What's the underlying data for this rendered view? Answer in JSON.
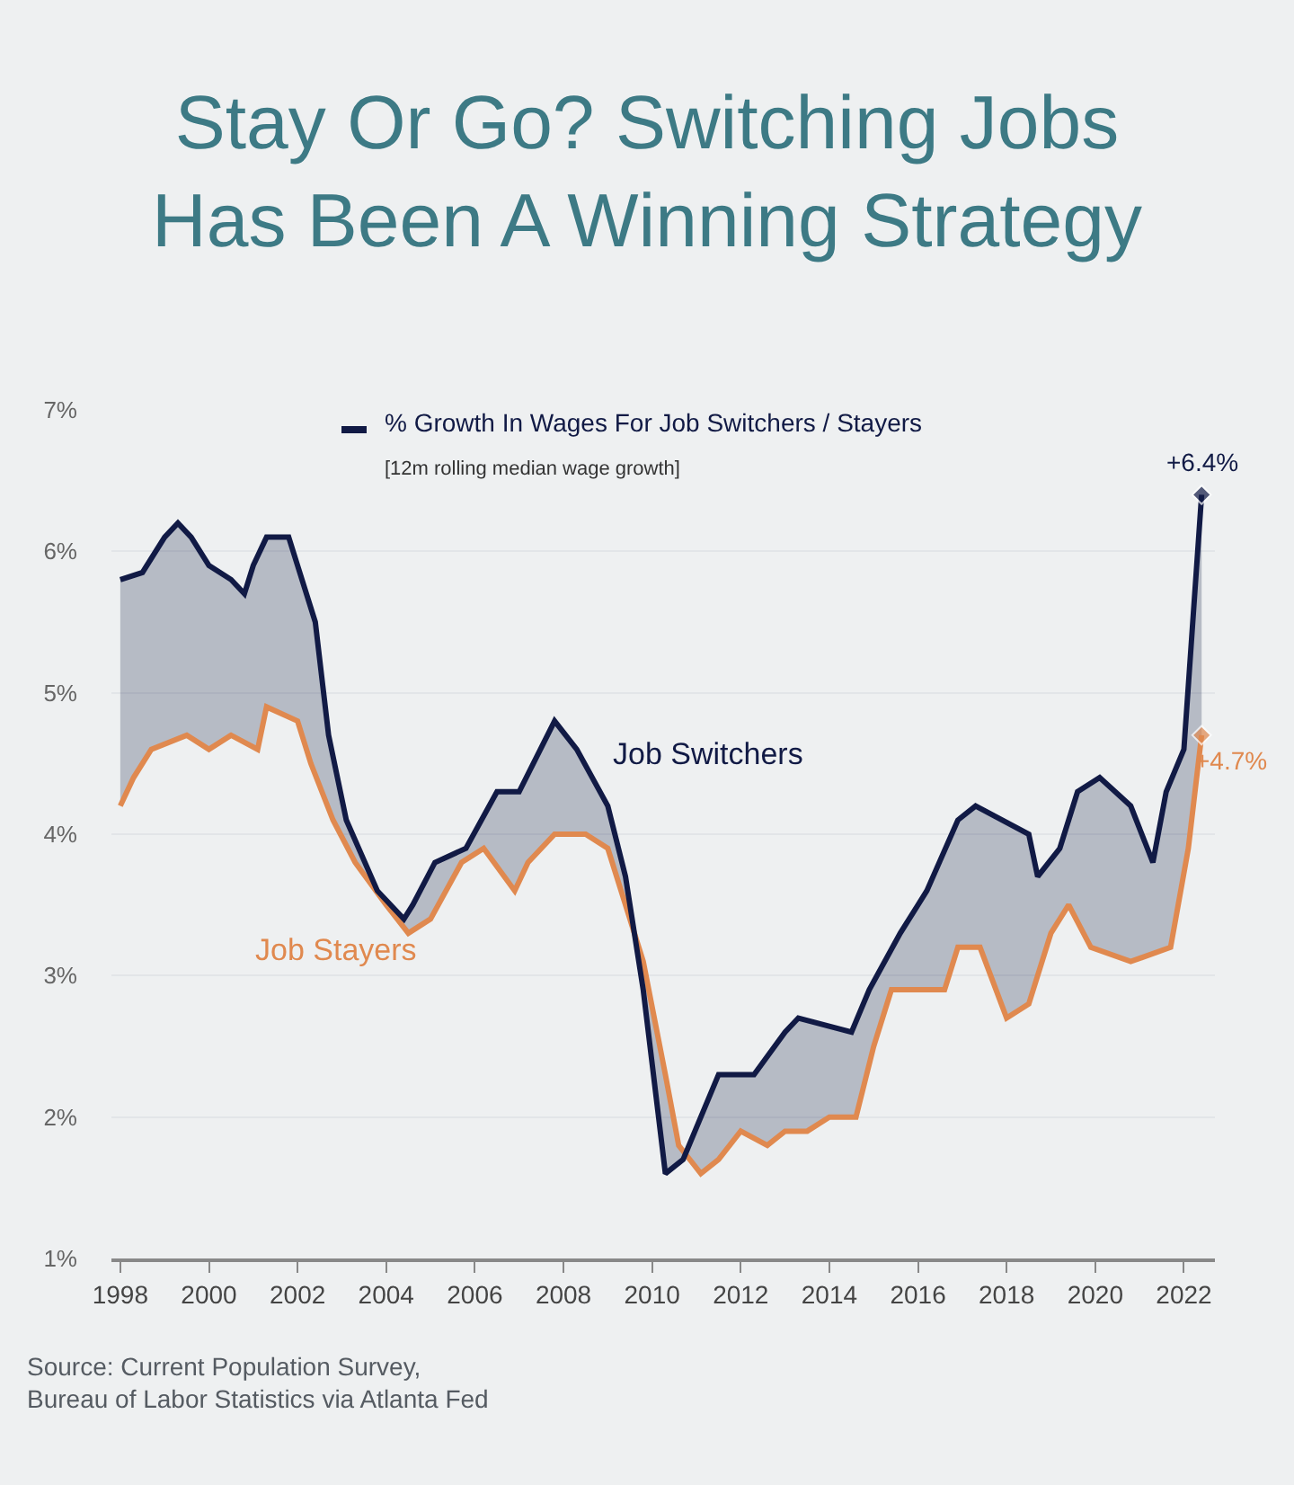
{
  "chart_data": {
    "type": "line",
    "title": "Stay Or Go? Switching Jobs\nHas Been A Winning Strategy",
    "legend_title": "% Growth In Wages For Job Switchers / Stayers",
    "subtitle": "[12m rolling median wage growth]",
    "series": [
      {
        "name": "Job Stayers",
        "color": "#e0894f",
        "x": [
          1998.0,
          1998.3,
          1998.7,
          1999.5,
          2000.0,
          2000.5,
          2001.1,
          2001.3,
          2002.0,
          2002.3,
          2002.8,
          2003.3,
          2004.0,
          2004.5,
          2005.0,
          2005.7,
          2006.2,
          2006.9,
          2007.2,
          2007.8,
          2008.5,
          2009.0,
          2009.3,
          2009.8,
          2010.3,
          2010.6,
          2011.1,
          2011.5,
          2012.0,
          2012.6,
          2013.0,
          2013.5,
          2014.0,
          2014.6,
          2015.0,
          2015.4,
          2016.0,
          2016.6,
          2016.9,
          2017.4,
          2018.0,
          2018.5,
          2019.0,
          2019.4,
          2019.9,
          2020.8,
          2021.7,
          2022.1,
          2022.4
        ],
        "values": [
          4.2,
          4.4,
          4.6,
          4.7,
          4.6,
          4.7,
          4.6,
          4.9,
          4.8,
          4.5,
          4.1,
          3.8,
          3.5,
          3.3,
          3.4,
          3.8,
          3.9,
          3.6,
          3.8,
          4.0,
          4.0,
          3.9,
          3.6,
          3.1,
          2.3,
          1.8,
          1.6,
          1.7,
          1.9,
          1.8,
          1.9,
          1.9,
          2.0,
          2.0,
          2.5,
          2.9,
          2.9,
          2.9,
          3.2,
          3.2,
          2.7,
          2.8,
          3.3,
          3.5,
          3.2,
          3.1,
          3.2,
          3.9,
          4.7
        ]
      },
      {
        "name": "Job Switchers",
        "color": "#111a45",
        "x": [
          1998.0,
          1998.5,
          1999.0,
          1999.3,
          1999.6,
          2000.0,
          2000.5,
          2000.8,
          2001.0,
          2001.3,
          2001.8,
          2002.0,
          2002.4,
          2002.7,
          2003.1,
          2003.8,
          2004.4,
          2004.6,
          2005.1,
          2005.8,
          2006.5,
          2007.0,
          2007.8,
          2008.3,
          2009.0,
          2009.4,
          2009.8,
          2010.3,
          2010.7,
          2011.1,
          2011.5,
          2012.3,
          2013.0,
          2013.3,
          2014.5,
          2014.9,
          2015.6,
          2016.2,
          2016.9,
          2017.3,
          2018.5,
          2018.7,
          2019.2,
          2019.6,
          2020.1,
          2020.8,
          2021.3,
          2021.6,
          2022.0,
          2022.4
        ],
        "values": [
          5.8,
          5.85,
          6.1,
          6.2,
          6.1,
          5.9,
          5.8,
          5.7,
          5.9,
          6.1,
          6.1,
          5.9,
          5.5,
          4.7,
          4.1,
          3.6,
          3.4,
          3.5,
          3.8,
          3.9,
          4.3,
          4.3,
          4.8,
          4.6,
          4.2,
          3.7,
          2.9,
          1.6,
          1.7,
          2.0,
          2.3,
          2.3,
          2.6,
          2.7,
          2.6,
          2.9,
          3.3,
          3.6,
          4.1,
          4.2,
          4.0,
          3.7,
          3.9,
          4.3,
          4.4,
          4.2,
          3.8,
          4.3,
          4.6,
          6.4
        ]
      }
    ],
    "xlim": [
      1997.8,
      2022.7
    ],
    "xticks": [
      1998,
      2000,
      2002,
      2004,
      2006,
      2008,
      2010,
      2012,
      2014,
      2016,
      2018,
      2020,
      2022
    ],
    "ylim": [
      1,
      7
    ],
    "yticks": [
      {
        "value": 1,
        "label": "1%"
      },
      {
        "value": 2,
        "label": "2%"
      },
      {
        "value": 3,
        "label": "3%"
      },
      {
        "value": 4,
        "label": "4%"
      },
      {
        "value": 5,
        "label": "5%"
      },
      {
        "value": 6,
        "label": "6%"
      },
      {
        "value": 7,
        "label": "7%"
      }
    ],
    "grid": "y",
    "legend": false,
    "line_style": "solid",
    "annotations": [
      {
        "text": "+6.4%",
        "x": 2022.4,
        "y": 6.4
      },
      {
        "text": "+4.7%",
        "x": 2022.4,
        "y": 4.7
      },
      "Source: Current Population Survey,",
      "Bureau of Labor Statistics via Atlanta Fed"
    ]
  }
}
